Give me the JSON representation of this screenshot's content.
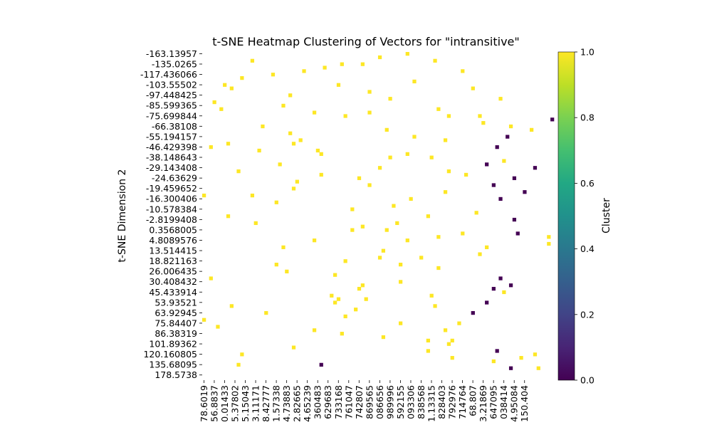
{
  "chart_data": {
    "type": "heatmap",
    "title": "t-SNE Heatmap Clustering of Vectors for \"intransitive\"",
    "xlabel": "",
    "ylabel": "t-SNE Dimension 2",
    "y_tick_labels": [
      "-163.13957",
      "-135.0265",
      "-117.436066",
      "-103.55502",
      "-97.448425",
      "-85.599365",
      "-75.699844",
      "-66.38108",
      "-55.194157",
      "-46.429398",
      "-38.148643",
      "-29.143408",
      "-24.63629",
      "-19.459652",
      "-16.300406",
      "-10.578384",
      "-2.8199408",
      "0.3568005",
      "4.8089576",
      "13.514415",
      "18.821163",
      "26.006435",
      "30.408432",
      "45.433914",
      "53.93521",
      "63.92945",
      "75.84407",
      "86.38319",
      "101.89362",
      "120.160805",
      "135.68095",
      "178.5738"
    ],
    "x_tick_labels": [
      "78.6019",
      "56.8837",
      "0.01433",
      "5.37802",
      "5.15043",
      "3.11171",
      "8.42777",
      "1.57338",
      "4.73883",
      "2.82665",
      "4.65239",
      "360483",
      "629683",
      "733168",
      "761047",
      "742807",
      "869565",
      "086656",
      "989996",
      "592155",
      "093306",
      "838568",
      "1.13315",
      "828403",
      "792976",
      "714764",
      "68.807",
      "3.21869",
      "647095",
      "038414",
      "4.95084",
      "150.404"
    ],
    "x_tick_index": [
      0,
      3,
      6,
      9,
      12,
      15,
      18,
      21,
      24,
      27,
      30,
      33,
      36,
      39,
      42,
      45,
      48,
      51,
      54,
      57,
      60,
      63,
      66,
      69,
      72,
      75,
      78,
      81,
      84,
      87,
      90,
      93
    ],
    "n_cols": 95,
    "n_rows": 95,
    "cells": [
      [
        0,
        59,
        1
      ],
      [
        1,
        51,
        1
      ],
      [
        2,
        14,
        1
      ],
      [
        2,
        67,
        1
      ],
      [
        3,
        46,
        1
      ],
      [
        3,
        40,
        1
      ],
      [
        4,
        35,
        1
      ],
      [
        5,
        29,
        1
      ],
      [
        5,
        75,
        1
      ],
      [
        6,
        20,
        1
      ],
      [
        7,
        11,
        1
      ],
      [
        8,
        61,
        1
      ],
      [
        9,
        39,
        1
      ],
      [
        9,
        6,
        1
      ],
      [
        10,
        78,
        1
      ],
      [
        10,
        8,
        1
      ],
      [
        11,
        48,
        1
      ],
      [
        12,
        25,
        1
      ],
      [
        13,
        86,
        1
      ],
      [
        13,
        54,
        1
      ],
      [
        14,
        3,
        1
      ],
      [
        15,
        23,
        1
      ],
      [
        16,
        5,
        1
      ],
      [
        16,
        68,
        1
      ],
      [
        17,
        48,
        1
      ],
      [
        17,
        32,
        1
      ],
      [
        18,
        80,
        1
      ],
      [
        18,
        71,
        1
      ],
      [
        18,
        41,
        1
      ],
      [
        19,
        101,
        0
      ],
      [
        20,
        81,
        1
      ],
      [
        21,
        89,
        1
      ],
      [
        21,
        17,
        1
      ],
      [
        22,
        95,
        1
      ],
      [
        22,
        53,
        1
      ],
      [
        23,
        25,
        1
      ],
      [
        24,
        61,
        1
      ],
      [
        24,
        88,
        0
      ],
      [
        25,
        70,
        1
      ],
      [
        25,
        28,
        1
      ],
      [
        26,
        7,
        1
      ],
      [
        26,
        26,
        1
      ],
      [
        27,
        85,
        0
      ],
      [
        27,
        2,
        1
      ],
      [
        28,
        33,
        1
      ],
      [
        28,
        16,
        1
      ],
      [
        29,
        59,
        1
      ],
      [
        29,
        34,
        1
      ],
      [
        30,
        66,
        1
      ],
      [
        30,
        54,
        1
      ],
      [
        31,
        87,
        1
      ],
      [
        32,
        82,
        0
      ],
      [
        32,
        22,
        1
      ],
      [
        33,
        96,
        0
      ],
      [
        33,
        51,
        1
      ],
      [
        34,
        10,
        1
      ],
      [
        34,
        71,
        1
      ],
      [
        35,
        34,
        1
      ],
      [
        35,
        76,
        1
      ],
      [
        36,
        45,
        1
      ],
      [
        36,
        90,
        0
      ],
      [
        37,
        27,
        1
      ],
      [
        38,
        84,
        0
      ],
      [
        38,
        48,
        1
      ],
      [
        39,
        26,
        1
      ],
      [
        40,
        70,
        1
      ],
      [
        40,
        93,
        0
      ],
      [
        41,
        0,
        1
      ],
      [
        41,
        14,
        1
      ],
      [
        42,
        86,
        0
      ],
      [
        42,
        60,
        1
      ],
      [
        43,
        21,
        1
      ],
      [
        44,
        55,
        1
      ],
      [
        44,
        104,
        0
      ],
      [
        45,
        43,
        1
      ],
      [
        46,
        79,
        1
      ],
      [
        47,
        7,
        1
      ],
      [
        47,
        65,
        1
      ],
      [
        48,
        90,
        0
      ],
      [
        49,
        15,
        1
      ],
      [
        49,
        56,
        1
      ],
      [
        50,
        46,
        1
      ],
      [
        51,
        53,
        1
      ],
      [
        51,
        43,
        1
      ],
      [
        52,
        91,
        0
      ],
      [
        52,
        75,
        1
      ],
      [
        53,
        100,
        1
      ],
      [
        53,
        68,
        1
      ],
      [
        54,
        59,
        1
      ],
      [
        54,
        32,
        1
      ],
      [
        55,
        100,
        1
      ],
      [
        56,
        82,
        1
      ],
      [
        56,
        23,
        1
      ],
      [
        57,
        52,
        1
      ],
      [
        58,
        80,
        1
      ],
      [
        59,
        63,
        1
      ],
      [
        59,
        51,
        1
      ],
      [
        60,
        41,
        1
      ],
      [
        61,
        21,
        1
      ],
      [
        61,
        57,
        1
      ],
      [
        62,
        68,
        1
      ],
      [
        63,
        24,
        1
      ],
      [
        64,
        38,
        1
      ],
      [
        65,
        2,
        1
      ],
      [
        65,
        86,
        0
      ],
      [
        66,
        57,
        1
      ],
      [
        67,
        89,
        0
      ],
      [
        67,
        46,
        1
      ],
      [
        68,
        45,
        1
      ],
      [
        68,
        84,
        0
      ],
      [
        69,
        87,
        1
      ],
      [
        70,
        66,
        1
      ],
      [
        70,
        37,
        1
      ],
      [
        71,
        39,
        1
      ],
      [
        71,
        47,
        1
      ],
      [
        72,
        82,
        0
      ],
      [
        72,
        38,
        1
      ],
      [
        73,
        67,
        1
      ],
      [
        73,
        8,
        1
      ],
      [
        74,
        44,
        1
      ],
      [
        75,
        18,
        1
      ],
      [
        75,
        78,
        0
      ],
      [
        76,
        41,
        1
      ],
      [
        77,
        0,
        1
      ],
      [
        78,
        74,
        1
      ],
      [
        78,
        57,
        1
      ],
      [
        79,
        4,
        1
      ],
      [
        80,
        70,
        1
      ],
      [
        80,
        32,
        1
      ],
      [
        81,
        40,
        1
      ],
      [
        82,
        52,
        1
      ],
      [
        83,
        72,
        1
      ],
      [
        83,
        65,
        1
      ],
      [
        84,
        71,
        1
      ],
      [
        85,
        26,
        1
      ],
      [
        86,
        65,
        1
      ],
      [
        86,
        85,
        0
      ],
      [
        87,
        96,
        1
      ],
      [
        87,
        11,
        1
      ],
      [
        88,
        72,
        1
      ],
      [
        88,
        92,
        1
      ],
      [
        89,
        84,
        1
      ],
      [
        90,
        34,
        0
      ],
      [
        90,
        10,
        1
      ],
      [
        91,
        97,
        1
      ],
      [
        91,
        89,
        0
      ]
    ],
    "colorbar": {
      "label": "Cluster",
      "ticks": [
        "0.0",
        "0.2",
        "0.4",
        "0.6",
        "0.8",
        "1.0"
      ],
      "tick_values": [
        0.0,
        0.2,
        0.4,
        0.6,
        0.8,
        1.0
      ],
      "range": [
        0,
        1
      ],
      "colormap": "viridis"
    },
    "colors": {
      "cluster_0": "#440154",
      "cluster_1": "#fde725"
    },
    "grid": false,
    "legend": "colorbar-right"
  }
}
